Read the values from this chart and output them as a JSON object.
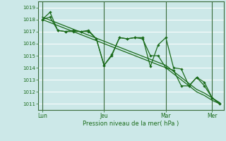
{
  "background_color": "#cce8e8",
  "plot_bg_color": "#cce8e8",
  "grid_color": "#ffffff",
  "line_color": "#1a6b1a",
  "marker_color": "#1a6b1a",
  "xlabel": "Pression niveau de la mer( hPa )",
  "ylim": [
    1010.5,
    1019.5
  ],
  "yticks": [
    1011,
    1012,
    1013,
    1014,
    1015,
    1016,
    1017,
    1018,
    1019
  ],
  "xtick_labels": [
    "Lun",
    "Jeu",
    "Mar",
    "Mer"
  ],
  "xtick_positions": [
    0,
    8,
    16,
    22
  ],
  "vline_positions": [
    0,
    8,
    16,
    22
  ],
  "n_points": 24,
  "line1": [
    1018.0,
    1018.6,
    1017.1,
    1017.0,
    1017.1,
    1017.0,
    1017.1,
    1016.4,
    1014.2,
    1015.1,
    1016.5,
    1016.4,
    1016.5,
    1016.5,
    1014.1,
    1015.9,
    1016.5,
    1014.0,
    1013.9,
    1012.5,
    1013.2,
    1012.5,
    1011.5,
    1011.0
  ],
  "line2": [
    1018.0,
    1018.2,
    1017.1,
    1017.0,
    1017.0,
    1017.0,
    1017.0,
    1016.4,
    1014.2,
    1015.0,
    1016.5,
    1016.4,
    1016.5,
    1016.4,
    1015.0,
    1015.0,
    1014.0,
    1013.8,
    1012.5,
    1012.5,
    1013.2,
    1012.8,
    1011.5,
    1011.0
  ],
  "trend1": [
    1018.0,
    1017.75,
    1017.5,
    1017.25,
    1017.0,
    1016.75,
    1016.5,
    1016.25,
    1016.0,
    1015.75,
    1015.5,
    1015.25,
    1015.0,
    1014.75,
    1014.5,
    1014.25,
    1014.0,
    1013.5,
    1013.0,
    1012.5,
    1012.0,
    1011.7,
    1011.3,
    1011.0
  ],
  "trend2": [
    1018.2,
    1017.95,
    1017.7,
    1017.45,
    1017.2,
    1016.95,
    1016.7,
    1016.45,
    1016.2,
    1015.95,
    1015.7,
    1015.45,
    1015.2,
    1014.95,
    1014.7,
    1014.45,
    1014.2,
    1013.7,
    1013.2,
    1012.7,
    1012.2,
    1011.9,
    1011.5,
    1011.1
  ]
}
